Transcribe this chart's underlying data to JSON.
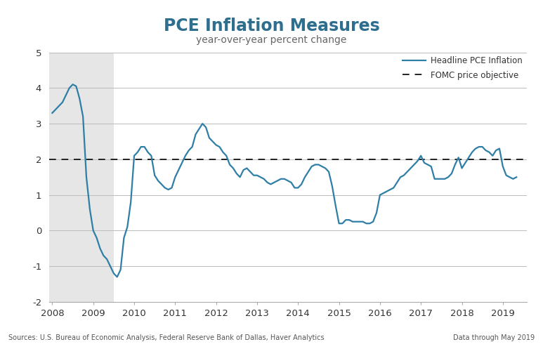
{
  "title": "PCE Inflation Measures",
  "subtitle": "year-over-year percent change",
  "title_color": "#2e6e8e",
  "subtitle_color": "#666666",
  "line_color": "#2e7ea6",
  "fomc_line_color": "#222222",
  "background_color": "#ffffff",
  "recession_color": "#e6e6e6",
  "recession_start": 2007.917,
  "recession_end": 2009.5,
  "ylim": [
    -2,
    5
  ],
  "yticks": [
    -2,
    -1,
    0,
    1,
    2,
    3,
    4,
    5
  ],
  "fomc_level": 2.0,
  "grid_color": "#bbbbbb",
  "footer_left": "Sources: U.S. Bureau of Economic Analysis, Federal Reserve Bank of Dallas, Haver Analytics",
  "footer_right": "Data through May 2019",
  "legend_line_label": "Headline PCE Inflation",
  "legend_fomc_label": "FOMC price objective",
  "header_bar_color": "#4a88a4",
  "dates": [
    2008.0,
    2008.083,
    2008.167,
    2008.25,
    2008.333,
    2008.417,
    2008.5,
    2008.583,
    2008.667,
    2008.75,
    2008.833,
    2008.917,
    2009.0,
    2009.083,
    2009.167,
    2009.25,
    2009.333,
    2009.417,
    2009.5,
    2009.583,
    2009.667,
    2009.75,
    2009.833,
    2009.917,
    2010.0,
    2010.083,
    2010.167,
    2010.25,
    2010.333,
    2010.417,
    2010.5,
    2010.583,
    2010.667,
    2010.75,
    2010.833,
    2010.917,
    2011.0,
    2011.083,
    2011.167,
    2011.25,
    2011.333,
    2011.417,
    2011.5,
    2011.583,
    2011.667,
    2011.75,
    2011.833,
    2011.917,
    2012.0,
    2012.083,
    2012.167,
    2012.25,
    2012.333,
    2012.417,
    2012.5,
    2012.583,
    2012.667,
    2012.75,
    2012.833,
    2012.917,
    2013.0,
    2013.083,
    2013.167,
    2013.25,
    2013.333,
    2013.417,
    2013.5,
    2013.583,
    2013.667,
    2013.75,
    2013.833,
    2013.917,
    2014.0,
    2014.083,
    2014.167,
    2014.25,
    2014.333,
    2014.417,
    2014.5,
    2014.583,
    2014.667,
    2014.75,
    2014.833,
    2014.917,
    2015.0,
    2015.083,
    2015.167,
    2015.25,
    2015.333,
    2015.417,
    2015.5,
    2015.583,
    2015.667,
    2015.75,
    2015.833,
    2015.917,
    2016.0,
    2016.083,
    2016.167,
    2016.25,
    2016.333,
    2016.417,
    2016.5,
    2016.583,
    2016.667,
    2016.75,
    2016.833,
    2016.917,
    2017.0,
    2017.083,
    2017.167,
    2017.25,
    2017.333,
    2017.417,
    2017.5,
    2017.583,
    2017.667,
    2017.75,
    2017.833,
    2017.917,
    2018.0,
    2018.083,
    2018.167,
    2018.25,
    2018.333,
    2018.417,
    2018.5,
    2018.583,
    2018.667,
    2018.75,
    2018.833,
    2018.917,
    2019.0,
    2019.083,
    2019.167,
    2019.25,
    2019.333
  ],
  "values": [
    3.3,
    3.4,
    3.5,
    3.6,
    3.8,
    4.0,
    4.1,
    4.05,
    3.7,
    3.2,
    1.5,
    0.6,
    0.0,
    -0.2,
    -0.5,
    -0.7,
    -0.8,
    -1.0,
    -1.2,
    -1.3,
    -1.1,
    -0.2,
    0.1,
    0.8,
    2.1,
    2.2,
    2.35,
    2.35,
    2.2,
    2.1,
    1.55,
    1.4,
    1.3,
    1.2,
    1.15,
    1.2,
    1.5,
    1.7,
    1.9,
    2.1,
    2.25,
    2.35,
    2.7,
    2.85,
    3.0,
    2.9,
    2.6,
    2.5,
    2.4,
    2.35,
    2.2,
    2.1,
    1.85,
    1.75,
    1.6,
    1.5,
    1.7,
    1.75,
    1.65,
    1.55,
    1.55,
    1.5,
    1.45,
    1.35,
    1.3,
    1.35,
    1.4,
    1.45,
    1.45,
    1.4,
    1.35,
    1.2,
    1.2,
    1.3,
    1.5,
    1.65,
    1.8,
    1.85,
    1.85,
    1.8,
    1.75,
    1.65,
    1.25,
    0.7,
    0.2,
    0.2,
    0.3,
    0.3,
    0.25,
    0.25,
    0.25,
    0.25,
    0.2,
    0.2,
    0.25,
    0.5,
    1.0,
    1.05,
    1.1,
    1.15,
    1.2,
    1.35,
    1.5,
    1.55,
    1.65,
    1.75,
    1.85,
    1.95,
    2.1,
    1.9,
    1.85,
    1.8,
    1.45,
    1.45,
    1.45,
    1.45,
    1.5,
    1.6,
    1.85,
    2.05,
    1.75,
    1.9,
    2.05,
    2.2,
    2.3,
    2.35,
    2.35,
    2.25,
    2.2,
    2.1,
    2.25,
    2.3,
    1.8,
    1.55,
    1.5,
    1.45,
    1.5
  ],
  "xlim": [
    2007.917,
    2019.583
  ],
  "xtick_positions": [
    2008,
    2009,
    2010,
    2011,
    2012,
    2013,
    2014,
    2015,
    2016,
    2017,
    2018,
    2019
  ],
  "xtick_labels": [
    "2008",
    "2009",
    "2010",
    "2011",
    "2012",
    "2013",
    "2014",
    "2015",
    "2016",
    "2017",
    "2018",
    "2019"
  ]
}
